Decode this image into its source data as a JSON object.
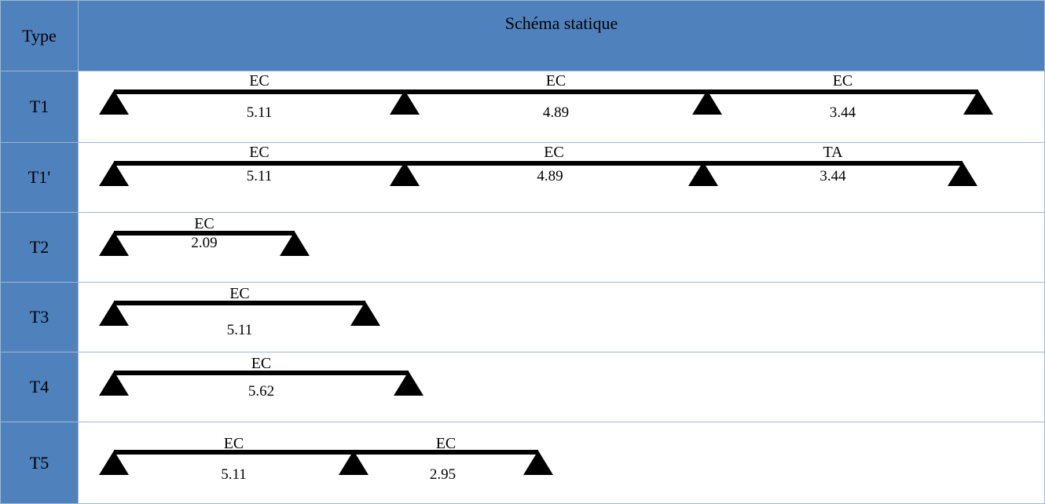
{
  "header": {
    "type": "Type",
    "schema": "Schéma statique"
  },
  "rows": [
    {
      "type": "T1",
      "spans": [
        {
          "label": "EC",
          "length": "5.11"
        },
        {
          "label": "EC",
          "length": "4.89"
        },
        {
          "label": "EC",
          "length": "3.44"
        }
      ]
    },
    {
      "type": "T1'",
      "spans": [
        {
          "label": "EC",
          "length": "5.11"
        },
        {
          "label": "EC",
          "length": "4.89"
        },
        {
          "label": "TA",
          "length": "3.44"
        }
      ]
    },
    {
      "type": "T2",
      "spans": [
        {
          "label": "EC",
          "length": "2.09"
        }
      ]
    },
    {
      "type": "T3",
      "spans": [
        {
          "label": "EC",
          "length": "5.11"
        }
      ]
    },
    {
      "type": "T4",
      "spans": [
        {
          "label": "EC",
          "length": "5.62"
        }
      ]
    },
    {
      "type": "T5",
      "spans": [
        {
          "label": "EC",
          "length": "5.11"
        },
        {
          "label": "EC",
          "length": "2.95"
        }
      ]
    }
  ]
}
